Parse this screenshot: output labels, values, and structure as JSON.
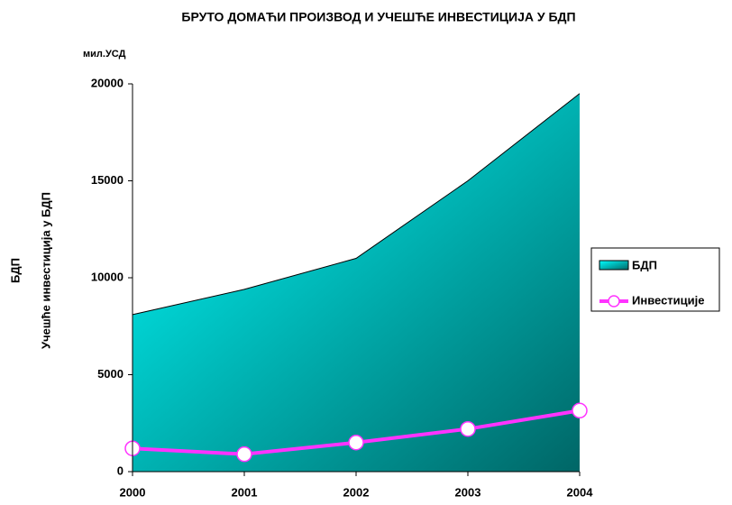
{
  "chart_data": {
    "type": "area",
    "title": "БРУТО ДОМАЋИ ПРОИЗВОД И УЧЕШЋЕ ИНВЕСТИЦИЈА У БДП",
    "unit_label": "мил.УСД",
    "y_label": "БДП",
    "y_label_2": "Учешће инвестиција у БДП",
    "categories": [
      "2000",
      "2001",
      "2002",
      "2003",
      "2004"
    ],
    "series": [
      {
        "name": "БДП",
        "type": "area",
        "color": "#00e8e8",
        "values": [
          8100,
          9400,
          11000,
          15000,
          19500
        ]
      },
      {
        "name": "Инвестиције",
        "type": "line",
        "color": "#ff33ff",
        "values": [
          1200,
          900,
          1500,
          2200,
          3150
        ]
      }
    ],
    "ylim": [
      0,
      20000
    ],
    "yticks": [
      0,
      5000,
      10000,
      15000,
      20000
    ]
  }
}
